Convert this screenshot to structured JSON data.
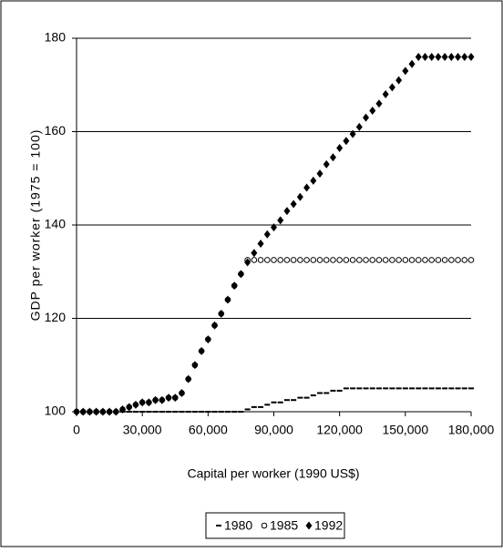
{
  "chart_data": {
    "type": "scatter",
    "y_label": "GDP per worker (1975 = 100)",
    "x_label": "Capital per worker (1990 US$)",
    "x": [
      0,
      3000,
      6000,
      9000,
      12000,
      15000,
      18000,
      21000,
      24000,
      27000,
      30000,
      33000,
      36000,
      39000,
      42000,
      45000,
      48000,
      51000,
      54000,
      57000,
      60000,
      63000,
      66000,
      69000,
      72000,
      75000,
      78000,
      81000,
      84000,
      87000,
      90000,
      93000,
      96000,
      99000,
      102000,
      105000,
      108000,
      111000,
      114000,
      117000,
      120000,
      123000,
      126000,
      129000,
      132000,
      135000,
      138000,
      141000,
      144000,
      147000,
      150000,
      153000,
      156000,
      159000,
      162000,
      165000,
      168000,
      171000,
      174000,
      177000,
      180000
    ],
    "series": [
      {
        "name": "1980",
        "color": "#000000",
        "marker": "dash",
        "values": [
          100,
          100,
          100,
          100,
          100,
          100,
          100,
          100,
          100,
          100,
          100,
          100,
          100,
          100,
          100,
          100,
          100,
          100,
          100,
          100,
          100,
          100,
          100,
          100,
          100,
          100,
          100.5,
          101,
          101,
          101.5,
          102,
          102,
          102.5,
          102.5,
          103,
          103,
          103.5,
          104,
          104,
          104.5,
          104.5,
          105,
          105,
          105,
          105,
          105,
          105,
          105,
          105,
          105,
          105,
          105,
          105,
          105,
          105,
          105,
          105,
          105,
          105,
          105,
          105
        ]
      },
      {
        "name": "1985",
        "color": "#000000",
        "marker": "circle",
        "values": [
          100,
          100,
          100,
          100,
          100,
          100,
          100,
          100.5,
          101,
          101.5,
          102,
          102,
          102.5,
          102.5,
          103,
          103,
          104,
          107,
          110,
          113,
          115.5,
          118.5,
          121,
          124,
          127,
          129.5,
          132.5,
          132.5,
          132.5,
          132.5,
          132.5,
          132.5,
          132.5,
          132.5,
          132.5,
          132.5,
          132.5,
          132.5,
          132.5,
          132.5,
          132.5,
          132.5,
          132.5,
          132.5,
          132.5,
          132.5,
          132.5,
          132.5,
          132.5,
          132.5,
          132.5,
          132.5,
          132.5,
          132.5,
          132.5,
          132.5,
          132.5,
          132.5,
          132.5,
          132.5,
          132.5
        ]
      },
      {
        "name": "1992",
        "color": "#000000",
        "marker": "diamond",
        "values": [
          100,
          100,
          100,
          100,
          100,
          100,
          100,
          100.5,
          101,
          101.5,
          102,
          102,
          102.5,
          102.5,
          103,
          103,
          104,
          107,
          110,
          113,
          115.5,
          118.5,
          121,
          124,
          127,
          129.5,
          132,
          134,
          136,
          138,
          139.5,
          141,
          143,
          144.5,
          146,
          148,
          149.5,
          151,
          153,
          154.5,
          156.5,
          158,
          159.5,
          161,
          163,
          164.5,
          166,
          168,
          169.5,
          171,
          173,
          174.5,
          176,
          176,
          176,
          176,
          176,
          176,
          176,
          176,
          176
        ]
      }
    ],
    "xlim": [
      0,
      180000
    ],
    "xticks": [
      0,
      {
        "value": 30000,
        "label": "30,000"
      },
      {
        "value": 60000,
        "label": "60,000"
      },
      {
        "value": 90000,
        "label": "90,000"
      },
      {
        "value": 120000,
        "label": "120,000"
      },
      {
        "value": 150000,
        "label": "150,000"
      },
      {
        "value": 180000,
        "label": "180,000"
      }
    ],
    "ylim": [
      100,
      180
    ],
    "yticks": [
      100,
      120,
      140,
      160,
      180
    ],
    "grid": true,
    "legend": "bottom"
  }
}
